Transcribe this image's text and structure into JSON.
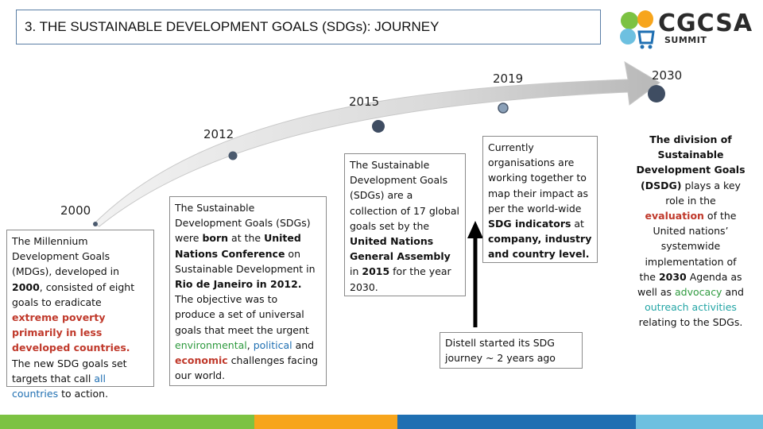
{
  "title": "3. THE SUSTAINABLE DEVELOPMENT GOALS (SDGs): JOURNEY",
  "logo": {
    "text": "CGCSA",
    "sub": "SUMMIT"
  },
  "years": {
    "y2000": "2000",
    "y2012": "2012",
    "y2015": "2015",
    "y2019": "2019",
    "y2030": "2030"
  },
  "box2000": {
    "p1": "The Millennium Development Goals (MDGs), developed in ",
    "p2": "2000",
    "p3": ", consisted of eight goals to eradicate ",
    "p4": "extreme poverty primarily in less developed countries.",
    "p5": " The new SDG goals set targets that call ",
    "p6": "all countries",
    "p7": " to action."
  },
  "box2012": {
    "p1": "The Sustainable Development Goals (SDGs) were ",
    "p2": "born",
    "p3": " at the ",
    "p4": "United Nations Conference",
    "p5": " on Sustainable Development in ",
    "p6": "Rio de Janeiro in 2012.",
    "p7": " The objective was to produce a set of universal goals that meet the urgent ",
    "p8": "environmental",
    "p9": ", ",
    "p10": "political",
    "p11": " and ",
    "p12": "economic",
    "p13": " challenges facing our world."
  },
  "box2015": {
    "p1": "The Sustainable Development Goals (SDGs) are a collection of 17 global goals set by the ",
    "p2": "United Nations General Assembly",
    "p3": " in ",
    "p4": "2015",
    "p5": " for the year 2030."
  },
  "box2019": {
    "p1": "Currently organisations are working together to map their impact as per the world-wide ",
    "p2": "SDG indicators",
    "p3": " at ",
    "p4": "company, industry and country level."
  },
  "distell": {
    "text": "Distell started its SDG journey ~ 2 years ago"
  },
  "right": {
    "p1": "The division of Sustainable Development Goals (DSDG)",
    "p2": " plays a key role in the ",
    "p3": "evaluation",
    "p4": " of the United nations’ systemwide implementation of the ",
    "p5": "2030",
    "p6": " Agenda as well as ",
    "p7": "advocacy",
    "p8": " and ",
    "p9": "outreach activities",
    "p10": " relating to the SDGs."
  },
  "colors": {
    "bar1": "#7cc242",
    "bar2": "#f7a51c",
    "bar3": "#1f6fb2",
    "bar4": "#6dc0e0"
  }
}
